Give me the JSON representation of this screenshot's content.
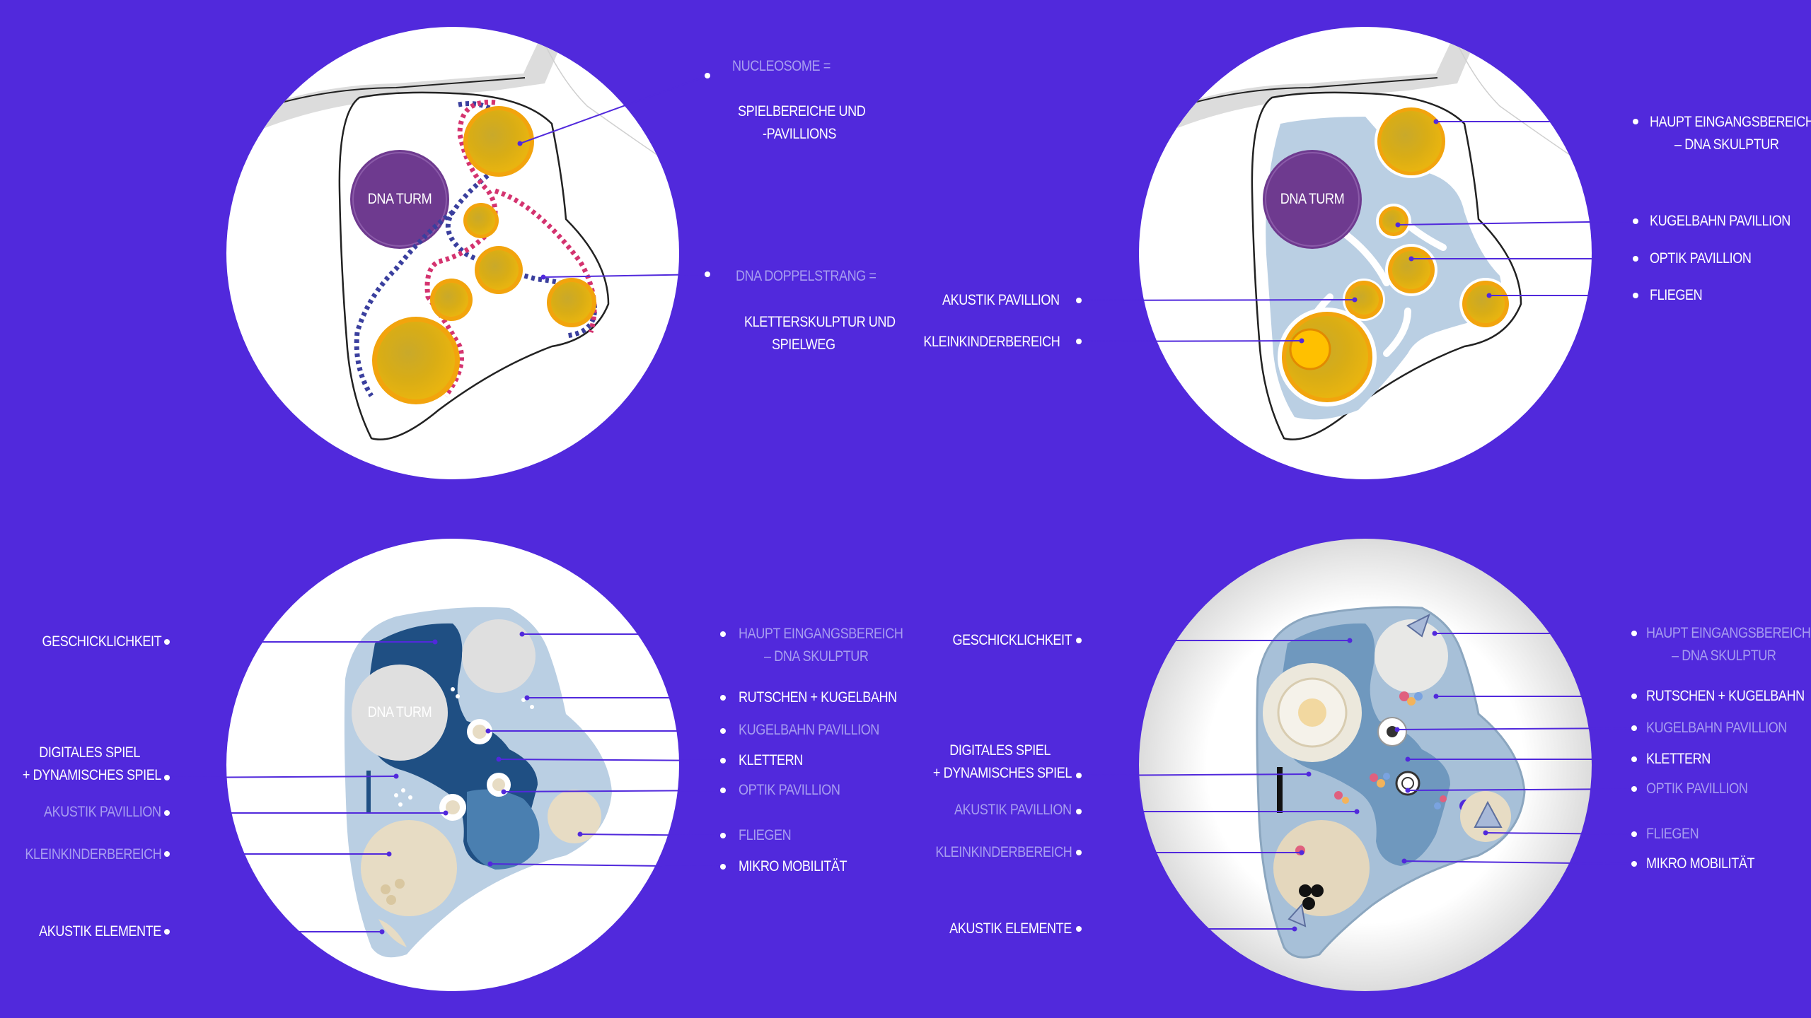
{
  "colors": {
    "background": "#5129dc",
    "circle": "#ffffff",
    "gold": "#e3b20f",
    "gold_ring": "#f2a40d",
    "dna_tower": "#6e3a8f",
    "pale_blue": "#bacfe3",
    "dark_blue": "#1f4f83",
    "sand": "#e7dcc4",
    "leader_line": "#5129dc",
    "label_white": "#ffffff",
    "label_faded": "#a79df0",
    "strand_magenta": "#d4336f",
    "strand_navy": "#3a3f9e"
  },
  "panel_1": {
    "tower_label": "DNA TURM",
    "labels": [
      {
        "text": "NUCLEOSOME =",
        "faded": true
      },
      {
        "text": "SPIELBEREICHE UND",
        "faded": false
      },
      {
        "text": "-PAVILLIONS",
        "faded": false
      },
      {
        "text": "DNA DOPPELSTRANG =",
        "faded": true
      },
      {
        "text": "KLETTERSKULPTUR UND",
        "faded": false
      },
      {
        "text": "SPIELWEG",
        "faded": false
      }
    ]
  },
  "panel_2": {
    "tower_label": "DNA TURM",
    "labels": [
      {
        "text": "HAUPT EINGANGSBEREICH",
        "faded": false
      },
      {
        "text": "– DNA SKULPTUR",
        "faded": false
      },
      {
        "text": "KUGELBAHN PAVILLION",
        "faded": false
      },
      {
        "text": "OPTIK PAVILLION",
        "faded": false
      },
      {
        "text": "FLIEGEN",
        "faded": false
      },
      {
        "text": "AKUSTIK PAVILLION",
        "faded": false
      },
      {
        "text": "KLEINKINDERBEREICH",
        "faded": false
      }
    ]
  },
  "panel_3": {
    "tower_label": "DNA TURM",
    "labels": [
      {
        "text": "GESCHICKLICHKEIT",
        "faded": false
      },
      {
        "text": "DIGITALES SPIEL",
        "faded": false
      },
      {
        "text": "+ DYNAMISCHES SPIEL",
        "faded": false
      },
      {
        "text": "AKUSTIK PAVILLION",
        "faded": true
      },
      {
        "text": "KLEINKINDERBEREICH",
        "faded": true
      },
      {
        "text": "AKUSTIK ELEMENTE",
        "faded": false
      },
      {
        "text": "HAUPT EINGANGSBEREICH",
        "faded": true
      },
      {
        "text": "– DNA SKULPTUR",
        "faded": true
      },
      {
        "text": "RUTSCHEN + KUGELBAHN",
        "faded": false
      },
      {
        "text": "KUGELBAHN PAVILLION",
        "faded": true
      },
      {
        "text": "KLETTERN",
        "faded": false
      },
      {
        "text": "OPTIK PAVILLION",
        "faded": true
      },
      {
        "text": "FLIEGEN",
        "faded": true
      },
      {
        "text": "MIKRO MOBILITÄT",
        "faded": false
      }
    ]
  },
  "panel_4": {
    "labels": [
      {
        "text": "GESCHICKLICHKEIT",
        "faded": false
      },
      {
        "text": "DIGITALES SPIEL",
        "faded": false
      },
      {
        "text": "+ DYNAMISCHES SPIEL",
        "faded": false
      },
      {
        "text": "AKUSTIK PAVILLION",
        "faded": true
      },
      {
        "text": "KLEINKINDERBEREICH",
        "faded": true
      },
      {
        "text": "AKUSTIK ELEMENTE",
        "faded": false
      },
      {
        "text": "HAUPT EINGANGSBEREICH",
        "faded": true
      },
      {
        "text": "– DNA SKULPTUR",
        "faded": true
      },
      {
        "text": "RUTSCHEN + KUGELBAHN",
        "faded": false
      },
      {
        "text": "KUGELBAHN PAVILLION",
        "faded": true
      },
      {
        "text": "KLETTERN",
        "faded": false
      },
      {
        "text": "OPTIK PAVILLION",
        "faded": true
      },
      {
        "text": "FLIEGEN",
        "faded": true
      },
      {
        "text": "MIKRO MOBILITÄT",
        "faded": false
      }
    ]
  }
}
